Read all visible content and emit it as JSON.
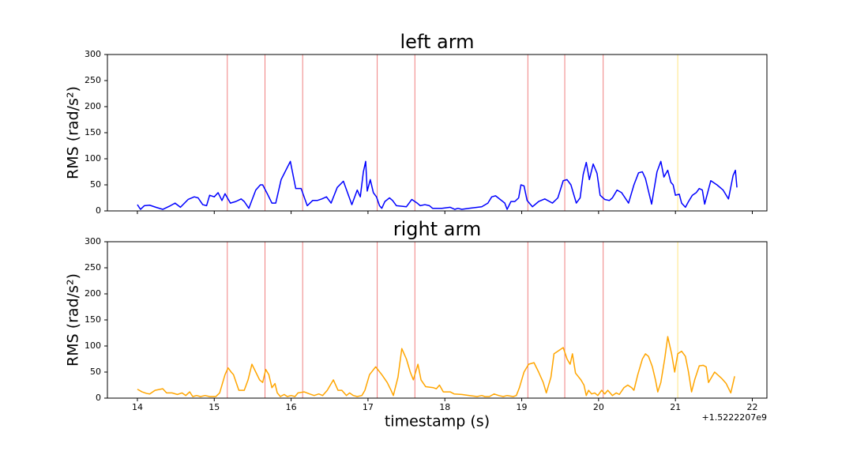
{
  "chart_data": [
    {
      "type": "line",
      "title": "left arm",
      "ylabel": "RMS (rad/s²)",
      "color": "#0000ff",
      "x": [
        14.0,
        14.04,
        14.09,
        14.16,
        14.24,
        14.33,
        14.43,
        14.49,
        14.56,
        14.66,
        14.74,
        14.79,
        14.85,
        14.9,
        14.94,
        15.0,
        15.05,
        15.1,
        15.14,
        15.21,
        15.28,
        15.35,
        15.39,
        15.45,
        15.54,
        15.6,
        15.63,
        15.69,
        15.75,
        15.8,
        15.87,
        15.99,
        16.06,
        16.13,
        16.21,
        16.28,
        16.34,
        16.4,
        16.46,
        16.52,
        16.6,
        16.68,
        16.79,
        16.86,
        16.9,
        16.94,
        16.97,
        16.99,
        17.03,
        17.07,
        17.11,
        17.15,
        17.18,
        17.22,
        17.28,
        17.32,
        17.37,
        17.5,
        17.57,
        17.64,
        17.68,
        17.74,
        17.8,
        17.84,
        17.96,
        18.07,
        18.13,
        18.17,
        18.22,
        18.31,
        18.48,
        18.56,
        18.61,
        18.66,
        18.72,
        18.78,
        18.81,
        18.86,
        18.91,
        18.96,
        18.99,
        19.03,
        19.07,
        19.14,
        19.22,
        19.3,
        19.4,
        19.47,
        19.54,
        19.59,
        19.64,
        19.71,
        19.76,
        19.8,
        19.84,
        19.88,
        19.93,
        19.98,
        20.02,
        20.08,
        20.14,
        20.18,
        20.24,
        20.3,
        20.39,
        20.46,
        20.52,
        20.57,
        20.61,
        20.69,
        20.76,
        20.81,
        20.85,
        20.9,
        20.94,
        20.97,
        21.0,
        21.05,
        21.08,
        21.13,
        21.17,
        21.22,
        21.27,
        21.31,
        21.35,
        21.38,
        21.46,
        21.54,
        21.62,
        21.69,
        21.75,
        21.78,
        21.8
      ],
      "values": [
        12,
        3,
        10,
        11,
        7,
        3,
        10,
        15,
        7,
        22,
        27,
        25,
        12,
        10,
        30,
        27,
        35,
        20,
        33,
        15,
        18,
        23,
        18,
        5,
        40,
        50,
        50,
        33,
        15,
        15,
        60,
        95,
        43,
        43,
        10,
        20,
        20,
        23,
        27,
        15,
        45,
        57,
        12,
        40,
        27,
        75,
        95,
        38,
        60,
        35,
        27,
        10,
        5,
        18,
        25,
        20,
        10,
        8,
        22,
        15,
        10,
        12,
        10,
        5,
        5,
        7,
        3,
        5,
        3,
        5,
        8,
        15,
        27,
        29,
        22,
        15,
        3,
        18,
        18,
        25,
        50,
        48,
        20,
        8,
        18,
        23,
        15,
        25,
        58,
        60,
        50,
        15,
        25,
        70,
        93,
        60,
        90,
        72,
        30,
        22,
        20,
        25,
        40,
        35,
        15,
        50,
        73,
        75,
        62,
        13,
        75,
        95,
        65,
        78,
        55,
        50,
        30,
        32,
        15,
        7,
        18,
        30,
        35,
        43,
        40,
        13,
        58,
        50,
        40,
        23,
        68,
        78,
        45
      ],
      "vlines": [
        {
          "value": 15.17,
          "color": "#f08080"
        },
        {
          "value": 15.66,
          "color": "#f08080"
        },
        {
          "value": 16.15,
          "color": "#f08080"
        },
        {
          "value": 17.12,
          "color": "#f08080"
        },
        {
          "value": 17.61,
          "color": "#f08080"
        },
        {
          "value": 19.08,
          "color": "#f08080"
        },
        {
          "value": 19.56,
          "color": "#f08080"
        },
        {
          "value": 20.06,
          "color": "#f08080"
        },
        {
          "value": 21.03,
          "color": "#ffe680"
        }
      ],
      "xlim": [
        13.61,
        22.19
      ],
      "xticks": [
        14,
        15,
        16,
        17,
        18,
        19,
        20,
        21,
        22
      ],
      "xticklabels": false,
      "ylim": [
        0,
        300
      ],
      "yticks": [
        0,
        50,
        100,
        150,
        200,
        250,
        300
      ]
    },
    {
      "type": "line",
      "title": "right arm",
      "ylabel": "RMS (rad/s²)",
      "xlabel": "timestamp (s)",
      "x_offset": "+1.5222207e9",
      "color": "#ffa500",
      "x": [
        14.0,
        14.06,
        14.12,
        14.16,
        14.23,
        14.33,
        14.38,
        14.45,
        14.52,
        14.58,
        14.63,
        14.68,
        14.72,
        14.77,
        14.82,
        14.88,
        14.94,
        15.02,
        15.07,
        15.14,
        15.18,
        15.22,
        15.25,
        15.32,
        15.39,
        15.44,
        15.49,
        15.54,
        15.59,
        15.63,
        15.67,
        15.71,
        15.75,
        15.79,
        15.82,
        15.86,
        15.91,
        15.95,
        16.0,
        16.05,
        16.09,
        16.17,
        16.24,
        16.3,
        16.36,
        16.41,
        16.47,
        16.55,
        16.61,
        16.66,
        16.72,
        16.76,
        16.81,
        16.86,
        16.92,
        16.96,
        17.02,
        17.1,
        17.18,
        17.25,
        17.3,
        17.33,
        17.39,
        17.44,
        17.5,
        17.55,
        17.59,
        17.65,
        17.69,
        17.75,
        17.85,
        17.89,
        17.93,
        17.98,
        18.07,
        18.12,
        18.22,
        18.32,
        18.42,
        18.48,
        18.52,
        18.58,
        18.64,
        18.7,
        18.76,
        18.81,
        18.89,
        18.93,
        18.97,
        19.03,
        19.09,
        19.16,
        19.22,
        19.28,
        19.32,
        19.38,
        19.42,
        19.47,
        19.54,
        19.59,
        19.63,
        19.66,
        19.7,
        19.77,
        19.81,
        19.84,
        19.87,
        19.91,
        19.95,
        19.99,
        20.04,
        20.08,
        20.12,
        20.18,
        20.23,
        20.27,
        20.33,
        20.38,
        20.43,
        20.46,
        20.51,
        20.57,
        20.61,
        20.65,
        20.7,
        20.74,
        20.77,
        20.81,
        20.86,
        20.9,
        20.95,
        20.99,
        21.03,
        21.08,
        21.13,
        21.17,
        21.21,
        21.25,
        21.31,
        21.36,
        21.4,
        21.43,
        21.51,
        21.6,
        21.66,
        21.72,
        21.77
      ],
      "values": [
        17,
        12,
        9,
        8,
        15,
        18,
        10,
        10,
        7,
        10,
        5,
        12,
        3,
        5,
        3,
        5,
        3,
        3,
        10,
        45,
        58,
        50,
        45,
        15,
        15,
        35,
        65,
        50,
        35,
        30,
        55,
        45,
        20,
        28,
        10,
        3,
        7,
        3,
        5,
        3,
        10,
        12,
        8,
        5,
        8,
        5,
        15,
        35,
        15,
        15,
        5,
        10,
        5,
        3,
        5,
        15,
        45,
        60,
        45,
        30,
        15,
        5,
        40,
        95,
        75,
        50,
        35,
        65,
        35,
        22,
        20,
        18,
        25,
        12,
        12,
        8,
        7,
        5,
        3,
        5,
        3,
        3,
        8,
        5,
        3,
        5,
        3,
        5,
        20,
        50,
        65,
        68,
        50,
        30,
        10,
        40,
        85,
        90,
        97,
        75,
        65,
        85,
        48,
        35,
        25,
        5,
        15,
        8,
        10,
        5,
        15,
        8,
        15,
        5,
        10,
        7,
        20,
        25,
        20,
        15,
        45,
        75,
        85,
        80,
        60,
        35,
        12,
        30,
        75,
        118,
        85,
        50,
        85,
        90,
        80,
        50,
        12,
        35,
        62,
        63,
        60,
        30,
        50,
        38,
        28,
        10,
        42
      ],
      "vlines": [
        {
          "value": 15.17,
          "color": "#f08080"
        },
        {
          "value": 15.66,
          "color": "#f08080"
        },
        {
          "value": 16.15,
          "color": "#f08080"
        },
        {
          "value": 17.12,
          "color": "#f08080"
        },
        {
          "value": 17.61,
          "color": "#f08080"
        },
        {
          "value": 19.08,
          "color": "#f08080"
        },
        {
          "value": 19.56,
          "color": "#f08080"
        },
        {
          "value": 20.06,
          "color": "#f08080"
        },
        {
          "value": 21.03,
          "color": "#ffe680"
        }
      ],
      "xlim": [
        13.61,
        22.19
      ],
      "xticks": [
        14,
        15,
        16,
        17,
        18,
        19,
        20,
        21,
        22
      ],
      "xticklabels": true,
      "ylim": [
        0,
        300
      ],
      "yticks": [
        0,
        50,
        100,
        150,
        200,
        250,
        300
      ]
    }
  ]
}
